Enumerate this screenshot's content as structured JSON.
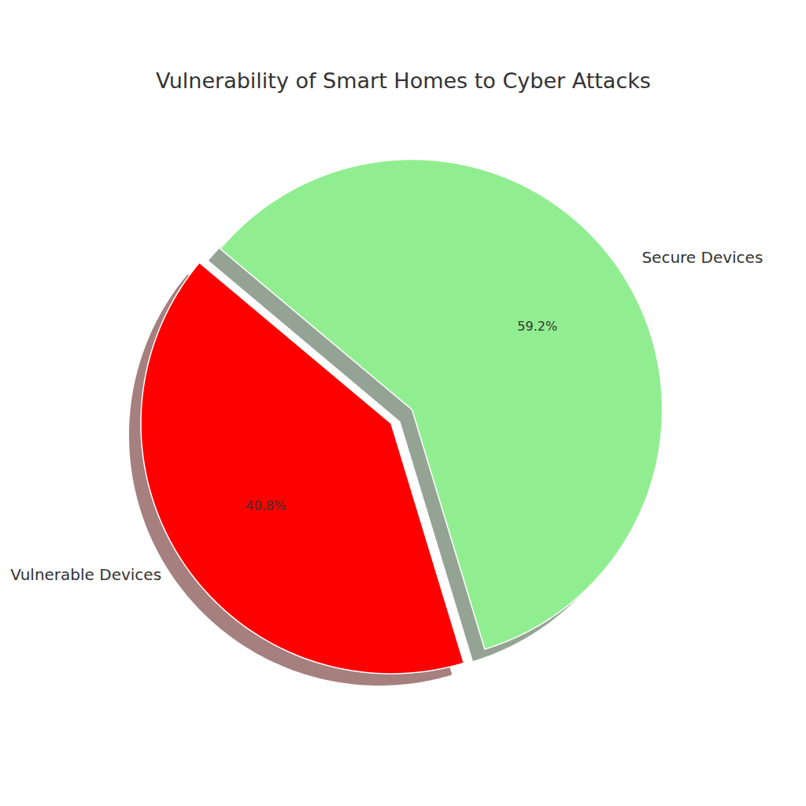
{
  "chart_data": {
    "type": "pie",
    "title": "Vulnerability of Smart Homes to Cyber Attacks",
    "categories": [
      "Vulnerable Devices",
      "Secure Devices"
    ],
    "values": [
      40.8,
      59.2
    ],
    "value_labels": [
      "40.8%",
      "59.2%"
    ],
    "colors": [
      "#ff0000",
      "#90ee90"
    ],
    "data_labels": true
  }
}
